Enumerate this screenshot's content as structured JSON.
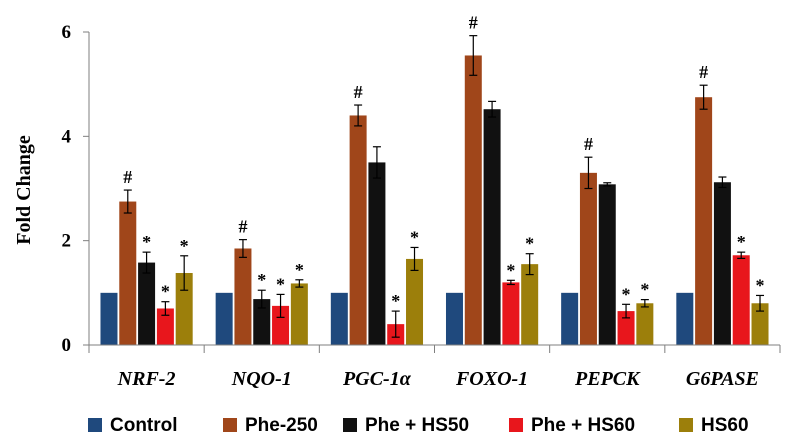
{
  "chart_data": {
    "type": "bar",
    "ylabel": "Fold Change",
    "xlabel": "",
    "ylim": [
      0,
      6
    ],
    "yticks": [
      "0",
      "2",
      "4",
      "6"
    ],
    "grid": false,
    "legend_position": "bottom",
    "categories": [
      "NRF-2",
      "NQO-1",
      "PGC-1α",
      "FOXO-1",
      "PEPCK",
      "G6PASE"
    ],
    "series": [
      {
        "name": "Control",
        "color": "#1f497d",
        "values": [
          1.0,
          1.0,
          1.0,
          1.0,
          1.0,
          1.0
        ],
        "errors": [
          0.0,
          0.0,
          0.0,
          0.0,
          0.0,
          0.0
        ],
        "annotations": [
          "",
          "",
          "",
          "",
          "",
          ""
        ]
      },
      {
        "name": "Phe-250",
        "color": "#a0461a",
        "values": [
          2.75,
          1.85,
          4.4,
          5.55,
          3.3,
          4.75
        ],
        "errors": [
          0.22,
          0.17,
          0.2,
          0.38,
          0.3,
          0.23
        ],
        "annotations": [
          "#",
          "#",
          "#",
          "#",
          "#",
          "#"
        ]
      },
      {
        "name": "Phe + HS50",
        "color": "#111111",
        "values": [
          1.58,
          0.88,
          3.5,
          4.52,
          3.08,
          3.12
        ],
        "errors": [
          0.2,
          0.17,
          0.3,
          0.15,
          0.03,
          0.1
        ],
        "annotations": [
          "*",
          "*",
          "",
          "",
          "",
          ""
        ]
      },
      {
        "name": "Phe + HS60",
        "color": "#e8161c",
        "values": [
          0.7,
          0.75,
          0.4,
          1.2,
          0.65,
          1.72
        ],
        "errors": [
          0.13,
          0.22,
          0.25,
          0.04,
          0.13,
          0.06
        ],
        "annotations": [
          "*",
          "*",
          "*",
          "*",
          "*",
          "*"
        ]
      },
      {
        "name": "HS60",
        "color": "#9c7f0b",
        "values": [
          1.38,
          1.18,
          1.65,
          1.55,
          0.8,
          0.8
        ],
        "errors": [
          0.33,
          0.07,
          0.22,
          0.2,
          0.07,
          0.15
        ],
        "annotations": [
          "*",
          "*",
          "*",
          "*",
          "*",
          "*"
        ]
      }
    ]
  }
}
